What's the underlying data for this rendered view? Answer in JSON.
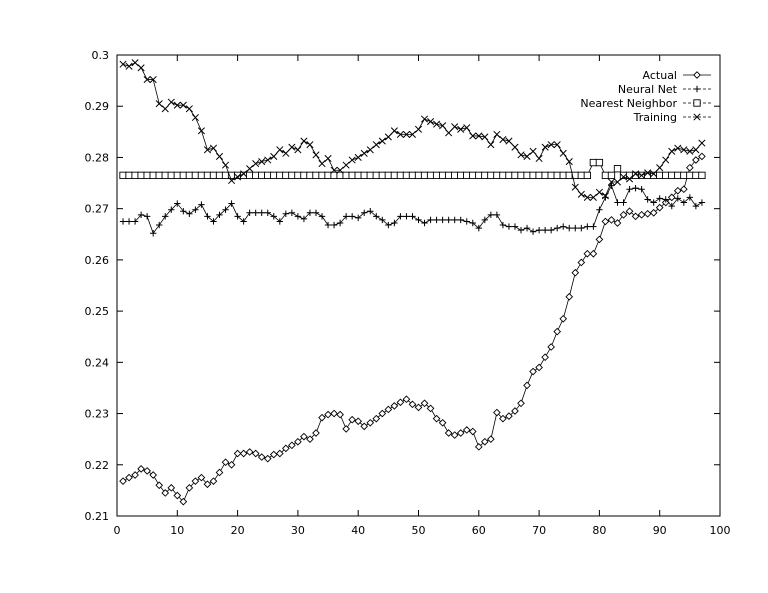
{
  "chart_data": {
    "type": "line",
    "title": "",
    "xlabel": "",
    "ylabel": "",
    "xlim": [
      0,
      100
    ],
    "ylim": [
      0.21,
      0.3
    ],
    "x_ticks": [
      {
        "value": 0,
        "label": "0"
      },
      {
        "value": 10,
        "label": "10"
      },
      {
        "value": 20,
        "label": "20"
      },
      {
        "value": 30,
        "label": "30"
      },
      {
        "value": 40,
        "label": "40"
      },
      {
        "value": 50,
        "label": "50"
      },
      {
        "value": 60,
        "label": "60"
      },
      {
        "value": 70,
        "label": "70"
      },
      {
        "value": 80,
        "label": "80"
      },
      {
        "value": 90,
        "label": "90"
      },
      {
        "value": 100,
        "label": "100"
      }
    ],
    "y_ticks": [
      {
        "value": 0.21,
        "label": "0.21"
      },
      {
        "value": 0.22,
        "label": "0.22"
      },
      {
        "value": 0.23,
        "label": "0.23"
      },
      {
        "value": 0.24,
        "label": "0.24"
      },
      {
        "value": 0.25,
        "label": "0.25"
      },
      {
        "value": 0.26,
        "label": "0.26"
      },
      {
        "value": 0.27,
        "label": "0.27"
      },
      {
        "value": 0.28,
        "label": "0.28"
      },
      {
        "value": 0.29,
        "label": "0.29"
      },
      {
        "value": 0.3,
        "label": "0.3"
      }
    ],
    "grid": false,
    "legend_position": "top-right",
    "x": [
      1,
      2,
      3,
      4,
      5,
      6,
      7,
      8,
      9,
      10,
      11,
      12,
      13,
      14,
      15,
      16,
      17,
      18,
      19,
      20,
      21,
      22,
      23,
      24,
      25,
      26,
      27,
      28,
      29,
      30,
      31,
      32,
      33,
      34,
      35,
      36,
      37,
      38,
      39,
      40,
      41,
      42,
      43,
      44,
      45,
      46,
      47,
      48,
      49,
      50,
      51,
      52,
      53,
      54,
      55,
      56,
      57,
      58,
      59,
      60,
      61,
      62,
      63,
      64,
      65,
      66,
      67,
      68,
      69,
      70,
      71,
      72,
      73,
      74,
      75,
      76,
      77,
      78,
      79,
      80,
      81,
      82,
      83,
      84,
      85,
      86,
      87,
      88,
      89,
      90,
      91,
      92,
      93,
      94,
      95,
      96,
      97
    ],
    "series": [
      {
        "name": "Actual",
        "marker": "diamond",
        "values": [
          0.2168,
          0.2175,
          0.218,
          0.2192,
          0.2188,
          0.218,
          0.216,
          0.2145,
          0.2155,
          0.214,
          0.2128,
          0.2155,
          0.2168,
          0.2175,
          0.2162,
          0.2168,
          0.2185,
          0.2205,
          0.22,
          0.2222,
          0.2222,
          0.2225,
          0.2222,
          0.2215,
          0.2212,
          0.222,
          0.2222,
          0.2232,
          0.2238,
          0.2245,
          0.2255,
          0.225,
          0.2262,
          0.2292,
          0.2298,
          0.23,
          0.2298,
          0.227,
          0.2288,
          0.2285,
          0.2275,
          0.2282,
          0.229,
          0.23,
          0.2308,
          0.2315,
          0.2322,
          0.2328,
          0.2318,
          0.2312,
          0.232,
          0.231,
          0.229,
          0.2282,
          0.2262,
          0.2258,
          0.2262,
          0.2268,
          0.2265,
          0.2235,
          0.2245,
          0.225,
          0.2302,
          0.229,
          0.2295,
          0.2305,
          0.232,
          0.2355,
          0.2382,
          0.239,
          0.241,
          0.243,
          0.246,
          0.2485,
          0.2528,
          0.2575,
          0.2595,
          0.2612,
          0.2612,
          0.264,
          0.2675,
          0.2678,
          0.2672,
          0.2688,
          0.2695,
          0.2685,
          0.2688,
          0.269,
          0.2692,
          0.2702,
          0.2712,
          0.2722,
          0.2735,
          0.2738,
          0.278,
          0.2795,
          0.2802
        ]
      },
      {
        "name": "Neural Net",
        "marker": "plus",
        "values": [
          0.2675,
          0.2675,
          0.2675,
          0.2688,
          0.2685,
          0.2652,
          0.2668,
          0.2685,
          0.2698,
          0.271,
          0.2695,
          0.269,
          0.2698,
          0.2708,
          0.2685,
          0.2675,
          0.2688,
          0.2698,
          0.271,
          0.2685,
          0.2675,
          0.2692,
          0.2692,
          0.2692,
          0.2692,
          0.2685,
          0.2675,
          0.269,
          0.2692,
          0.2685,
          0.268,
          0.2692,
          0.2692,
          0.2685,
          0.2668,
          0.2668,
          0.2672,
          0.2685,
          0.2685,
          0.2682,
          0.2692,
          0.2695,
          0.2685,
          0.2678,
          0.2668,
          0.2672,
          0.2685,
          0.2685,
          0.2685,
          0.2678,
          0.2672,
          0.2678,
          0.2678,
          0.2678,
          0.2678,
          0.2678,
          0.2678,
          0.2675,
          0.2672,
          0.2662,
          0.2678,
          0.2688,
          0.2688,
          0.2668,
          0.2665,
          0.2665,
          0.2658,
          0.2662,
          0.2655,
          0.2658,
          0.2658,
          0.2658,
          0.2662,
          0.2665,
          0.2662,
          0.2662,
          0.2662,
          0.2665,
          0.2665,
          0.2698,
          0.2722,
          0.2745,
          0.2712,
          0.2712,
          0.2738,
          0.274,
          0.2738,
          0.2718,
          0.2712,
          0.272,
          0.2718,
          0.2705,
          0.272,
          0.2712,
          0.2722,
          0.2705,
          0.2712
        ]
      },
      {
        "name": "Nearest Neighbor",
        "marker": "square",
        "values": [
          0.2765,
          0.2765,
          0.2765,
          0.2765,
          0.2765,
          0.2765,
          0.2765,
          0.2765,
          0.2765,
          0.2765,
          0.2765,
          0.2765,
          0.2765,
          0.2765,
          0.2765,
          0.2765,
          0.2765,
          0.2765,
          0.2765,
          0.2765,
          0.2765,
          0.2765,
          0.2765,
          0.2765,
          0.2765,
          0.2765,
          0.2765,
          0.2765,
          0.2765,
          0.2765,
          0.2765,
          0.2765,
          0.2765,
          0.2765,
          0.2765,
          0.2765,
          0.2765,
          0.2765,
          0.2765,
          0.2765,
          0.2765,
          0.2765,
          0.2765,
          0.2765,
          0.2765,
          0.2765,
          0.2765,
          0.2765,
          0.2765,
          0.2765,
          0.2765,
          0.2765,
          0.2765,
          0.2765,
          0.2765,
          0.2765,
          0.2765,
          0.2765,
          0.2765,
          0.2765,
          0.2765,
          0.2765,
          0.2765,
          0.2765,
          0.2765,
          0.2765,
          0.2765,
          0.2765,
          0.2765,
          0.2765,
          0.2765,
          0.2765,
          0.2765,
          0.2765,
          0.2765,
          0.2765,
          0.2765,
          0.2765,
          0.279,
          0.279,
          0.2765,
          0.2765,
          0.2778,
          0.2765,
          0.2765,
          0.2765,
          0.2765,
          0.2765,
          0.2765,
          0.2765,
          0.2765,
          0.2765,
          0.2765,
          0.2765,
          0.2765,
          0.2765,
          0.2765
        ]
      },
      {
        "name": "Training",
        "marker": "cross",
        "values": [
          0.2982,
          0.2978,
          0.2985,
          0.2975,
          0.2952,
          0.2952,
          0.2905,
          0.2895,
          0.2908,
          0.2902,
          0.2902,
          0.2895,
          0.2878,
          0.2852,
          0.2815,
          0.2818,
          0.2802,
          0.2785,
          0.2755,
          0.2762,
          0.2768,
          0.2778,
          0.2788,
          0.2792,
          0.2795,
          0.2802,
          0.2815,
          0.2808,
          0.282,
          0.2815,
          0.2832,
          0.2825,
          0.2805,
          0.2788,
          0.2798,
          0.2775,
          0.2775,
          0.2785,
          0.2795,
          0.28,
          0.2808,
          0.2815,
          0.2825,
          0.2832,
          0.284,
          0.2852,
          0.2845,
          0.2845,
          0.2845,
          0.2855,
          0.2875,
          0.287,
          0.2865,
          0.2862,
          0.2848,
          0.286,
          0.2855,
          0.2858,
          0.2842,
          0.2842,
          0.284,
          0.2825,
          0.2845,
          0.2835,
          0.2832,
          0.282,
          0.2805,
          0.2802,
          0.2812,
          0.2798,
          0.282,
          0.2825,
          0.2825,
          0.2808,
          0.2792,
          0.2742,
          0.2728,
          0.2722,
          0.2722,
          0.2732,
          0.2725,
          0.2752,
          0.2752,
          0.2762,
          0.2758,
          0.2768,
          0.2765,
          0.277,
          0.2768,
          0.278,
          0.2795,
          0.2812,
          0.2818,
          0.2815,
          0.2812,
          0.2815,
          0.2828
        ]
      }
    ]
  }
}
